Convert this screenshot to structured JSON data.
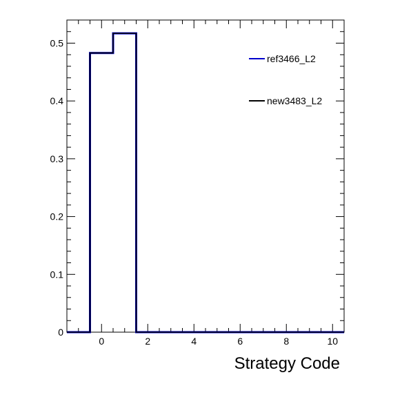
{
  "chart_data": {
    "type": "histogram-step",
    "title": "",
    "xlabel": "Strategy Code",
    "ylabel": "",
    "xlim": [
      -1.5,
      10.5
    ],
    "ylim": [
      0,
      0.54
    ],
    "x_major_ticks": [
      0,
      2,
      4,
      6,
      8,
      10
    ],
    "x_tick_labels": [
      "0",
      "2",
      "4",
      "6",
      "8",
      "10"
    ],
    "y_major_ticks": [
      0,
      0.1,
      0.2,
      0.3,
      0.4,
      0.5
    ],
    "y_tick_labels": [
      "0",
      "0.1",
      "0.2",
      "0.3",
      "0.4",
      "0.5"
    ],
    "bin_edges": [
      -1.5,
      -0.5,
      0.5,
      1.5,
      2.5,
      3.5,
      4.5,
      5.5,
      6.5,
      7.5,
      8.5,
      9.5,
      10.5
    ],
    "bin_centers": [
      -1,
      0,
      1,
      2,
      3,
      4,
      5,
      6,
      7,
      8,
      9,
      10
    ],
    "series": [
      {
        "name": "ref3466_L2",
        "color": "#0000cc",
        "values": [
          0,
          0.483,
          0.517,
          0,
          0,
          0,
          0,
          0,
          0,
          0,
          0,
          0
        ]
      },
      {
        "name": "new3483_L2",
        "color": "#000000",
        "values": [
          0,
          0.483,
          0.517,
          0,
          0,
          0,
          0,
          0,
          0,
          0,
          0,
          0
        ]
      }
    ],
    "legend_position": "top-right",
    "grid": false
  }
}
